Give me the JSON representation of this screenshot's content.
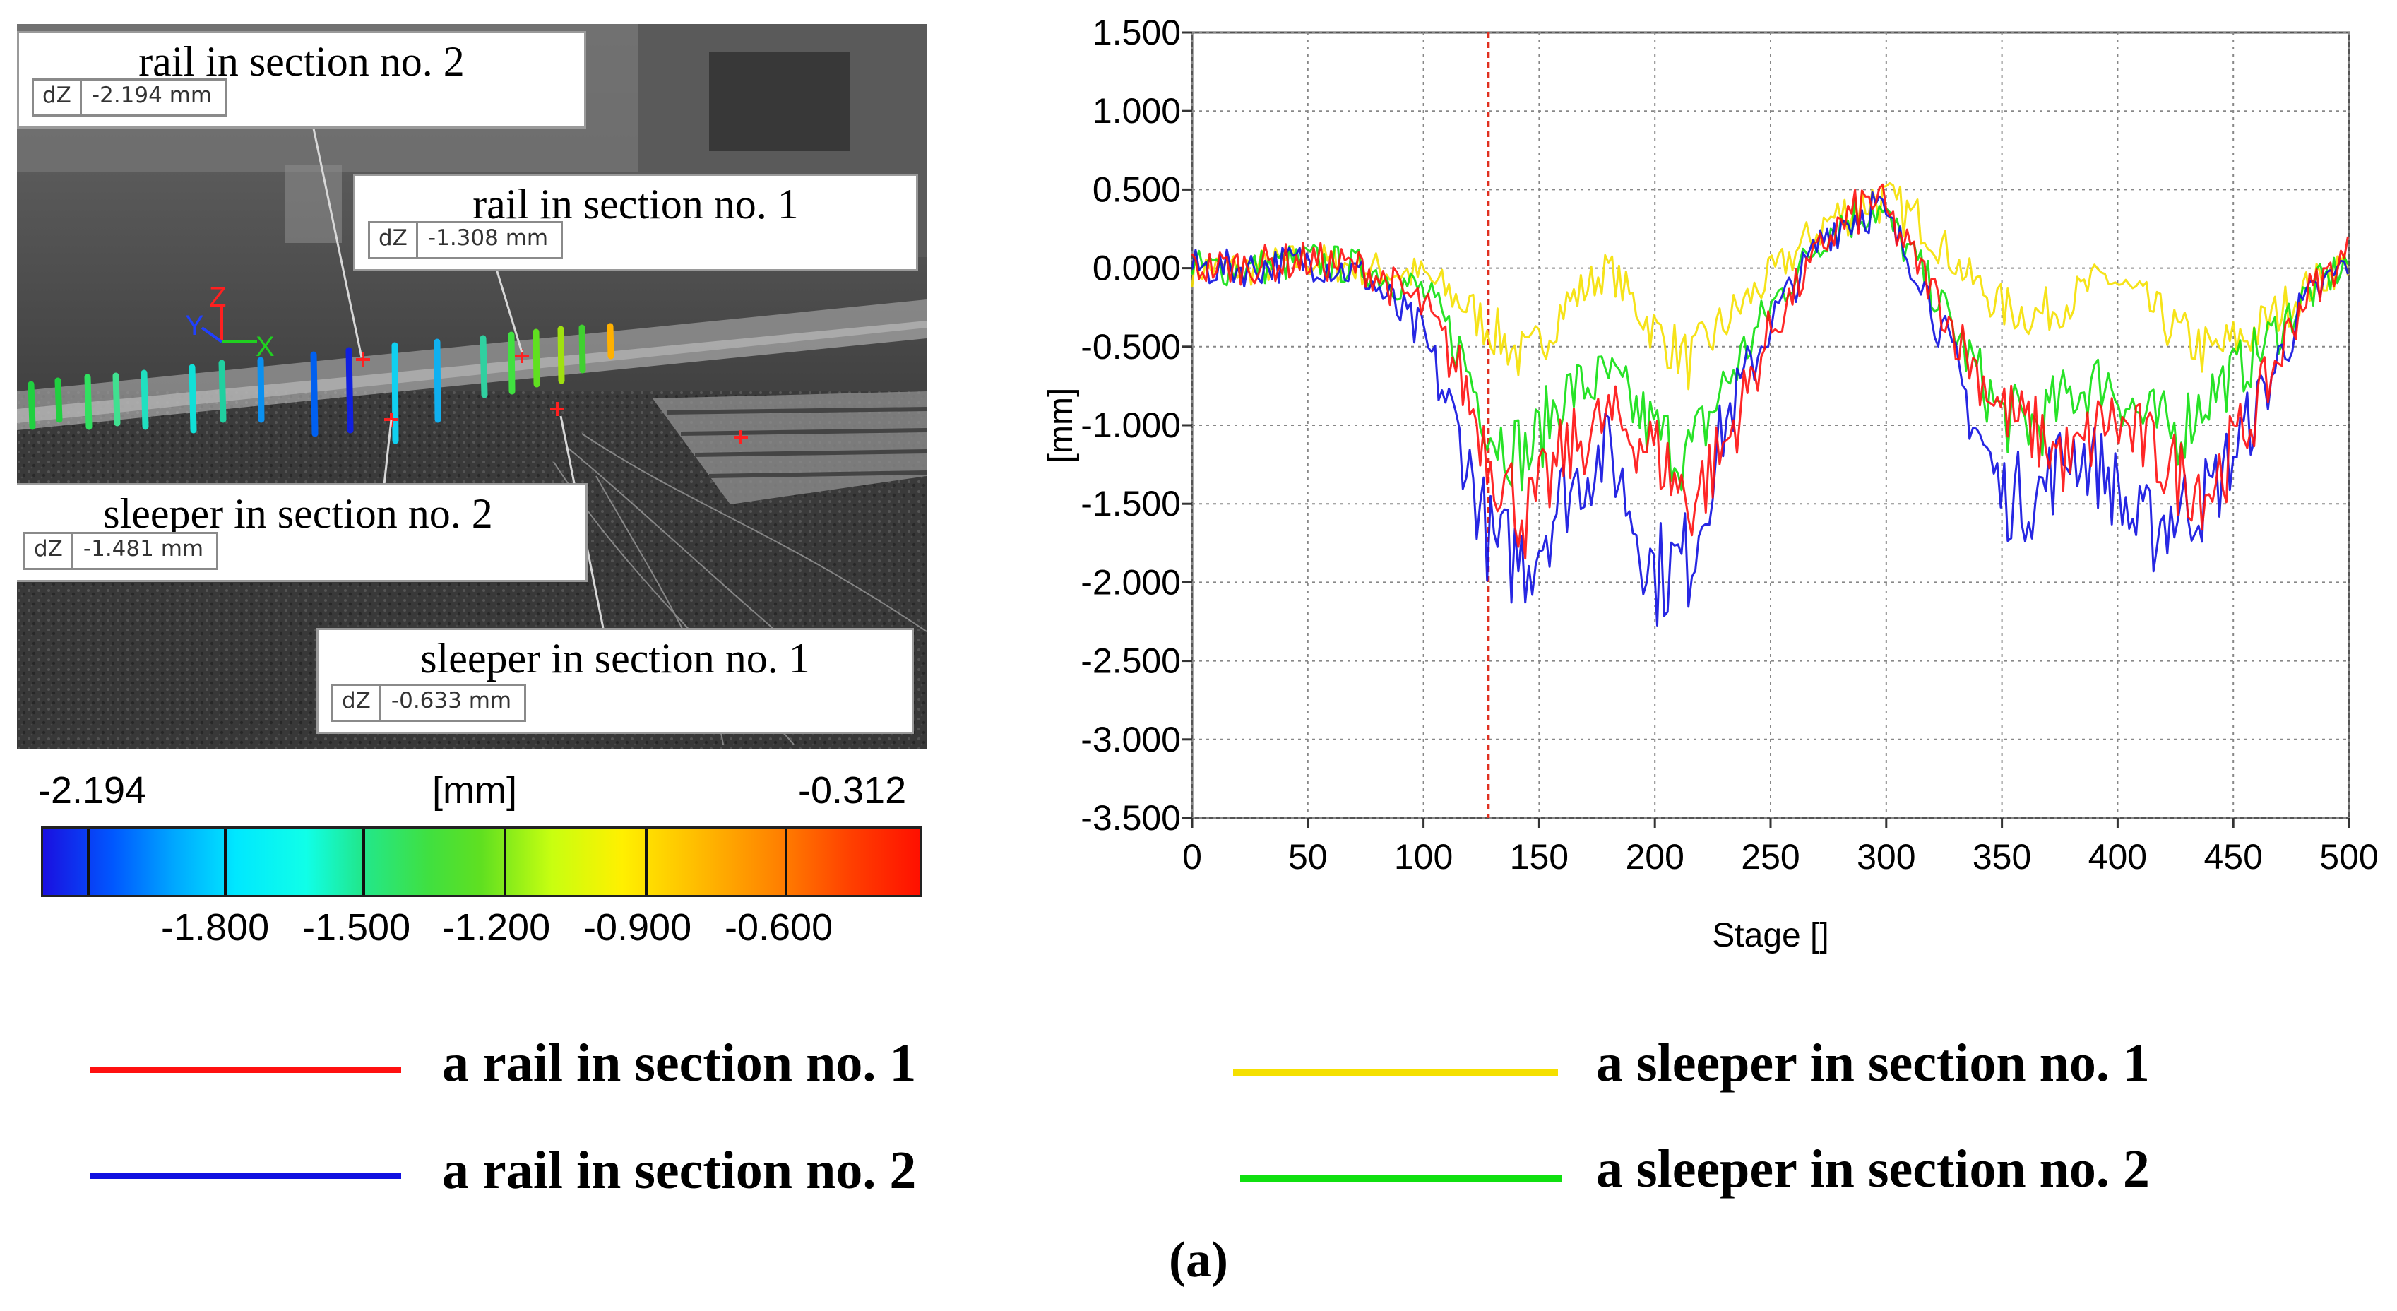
{
  "photo": {
    "callouts": [
      {
        "title": "rail in section no. 2",
        "dz_label": "dZ",
        "value": "-2.194 mm"
      },
      {
        "title": "rail in section no. 1",
        "dz_label": "dZ",
        "value": "-1.308 mm"
      },
      {
        "title": "sleeper in section no. 2",
        "dz_label": "dZ",
        "value": "-1.481 mm"
      },
      {
        "title": "sleeper in section no. 1",
        "dz_label": "dZ",
        "value": "-0.633 mm"
      }
    ],
    "axis_letters": {
      "z": "Z",
      "y": "Y",
      "x": "X"
    }
  },
  "color_scale": {
    "min_label": "-2.194",
    "unit_label": "[mm]",
    "max_label": "-0.312",
    "ticks": [
      "-1.800",
      "-1.500",
      "-1.200",
      "-0.900",
      "-0.600"
    ]
  },
  "chart_data": {
    "type": "line",
    "xlabel": "Stage []",
    "ylabel": "[mm]",
    "xlim": [
      0,
      500
    ],
    "ylim": [
      -3.5,
      1.5
    ],
    "x_ticks": [
      "0",
      "50",
      "100",
      "150",
      "200",
      "250",
      "300",
      "350",
      "400",
      "450",
      "500"
    ],
    "y_ticks": [
      "1.500",
      "1.000",
      "0.500",
      "0.000",
      "-0.500",
      "-1.000",
      "-1.500",
      "-2.000",
      "-2.500",
      "-3.000",
      "-3.500"
    ],
    "grid": true,
    "marker_line_x": 128,
    "marker_line_color": "#e03020",
    "x": [
      0,
      25,
      50,
      75,
      100,
      115,
      130,
      145,
      160,
      180,
      200,
      215,
      230,
      250,
      275,
      295,
      315,
      335,
      350,
      365,
      380,
      395,
      410,
      425,
      440,
      460,
      480,
      500
    ],
    "series": [
      {
        "name": "a rail in section no. 1",
        "color": "#ff1010",
        "values": [
          0.0,
          0.02,
          0.05,
          0.0,
          -0.25,
          -0.65,
          -1.25,
          -1.6,
          -1.2,
          -0.95,
          -1.15,
          -1.5,
          -1.15,
          -0.4,
          0.2,
          0.45,
          0.0,
          -0.55,
          -0.9,
          -1.05,
          -1.25,
          -0.95,
          -1.1,
          -1.3,
          -1.4,
          -0.9,
          -0.2,
          0.1
        ]
      },
      {
        "name": "a rail in section no. 2",
        "color": "#1010e0",
        "values": [
          0.0,
          0.0,
          0.05,
          -0.05,
          -0.45,
          -1.05,
          -1.8,
          -1.85,
          -1.45,
          -1.15,
          -1.95,
          -1.85,
          -1.0,
          -0.35,
          0.25,
          0.4,
          -0.05,
          -0.85,
          -1.45,
          -1.45,
          -1.15,
          -1.3,
          -1.7,
          -1.55,
          -1.45,
          -0.9,
          -0.25,
          0.05
        ]
      },
      {
        "name": "a sleeper in section no. 1",
        "color": "#f5e000",
        "values": [
          0.0,
          0.0,
          0.05,
          0.0,
          -0.05,
          -0.2,
          -0.4,
          -0.6,
          -0.25,
          0.0,
          -0.4,
          -0.6,
          -0.35,
          -0.05,
          0.3,
          0.45,
          0.3,
          -0.05,
          -0.25,
          -0.3,
          -0.2,
          -0.05,
          -0.2,
          -0.4,
          -0.55,
          -0.4,
          -0.15,
          0.05
        ]
      },
      {
        "name": "a sleeper in section no. 2",
        "color": "#10e010",
        "values": [
          0.0,
          0.0,
          0.05,
          0.0,
          -0.15,
          -0.5,
          -1.05,
          -1.2,
          -0.8,
          -0.7,
          -1.05,
          -1.2,
          -0.75,
          -0.25,
          0.25,
          0.4,
          0.0,
          -0.55,
          -0.95,
          -1.0,
          -0.8,
          -0.7,
          -0.95,
          -1.05,
          -0.8,
          -0.55,
          -0.2,
          0.05
        ]
      }
    ]
  },
  "legend": [
    {
      "label": "a rail in section no. 1",
      "color": "#ff1010"
    },
    {
      "label": "a sleeper in section no. 1",
      "color": "#f5e000"
    },
    {
      "label": "a rail in section no. 2",
      "color": "#1010e0"
    },
    {
      "label": "a sleeper in section no. 2",
      "color": "#10e010"
    }
  ],
  "panel_label": "(a)"
}
